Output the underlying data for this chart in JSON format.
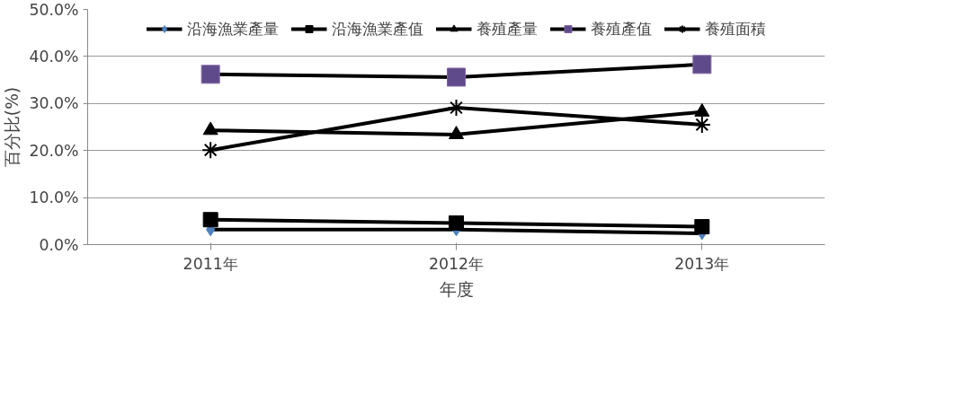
{
  "chart_data": {
    "type": "line",
    "xlabel": "年度",
    "ylabel": "百分比(%)",
    "categories": [
      "2011年",
      "2012年",
      "2013年"
    ],
    "series": [
      {
        "name": "沿海漁業產量",
        "color": "#000000",
        "marker": "diamond",
        "values": [
          3.2,
          3.2,
          2.4
        ]
      },
      {
        "name": "沿海漁業產值",
        "color": "#000000",
        "marker": "square",
        "values": [
          5.3,
          4.6,
          3.8
        ]
      },
      {
        "name": "養殖產量",
        "color": "#000000",
        "marker": "triangle",
        "values": [
          24.3,
          23.4,
          28.2
        ]
      },
      {
        "name": "養殖產值",
        "color": "#000000",
        "marker": "square",
        "values": [
          36.2,
          35.6,
          38.3
        ]
      },
      {
        "name": "養殖面積",
        "color": "#000000",
        "marker": "cross",
        "values": [
          20.1,
          29.1,
          25.5
        ]
      }
    ],
    "ylim": [
      0,
      50
    ],
    "yticks": [
      {
        "value": 0,
        "label": "0.0%"
      },
      {
        "value": 10,
        "label": "10.0%"
      },
      {
        "value": 20,
        "label": "20.0%"
      },
      {
        "value": 30,
        "label": "30.0%"
      },
      {
        "value": 40,
        "label": "40.0%"
      },
      {
        "value": 50,
        "label": "50.0%"
      }
    ],
    "grid": "y",
    "legend": "top",
    "line_style": "solid"
  }
}
